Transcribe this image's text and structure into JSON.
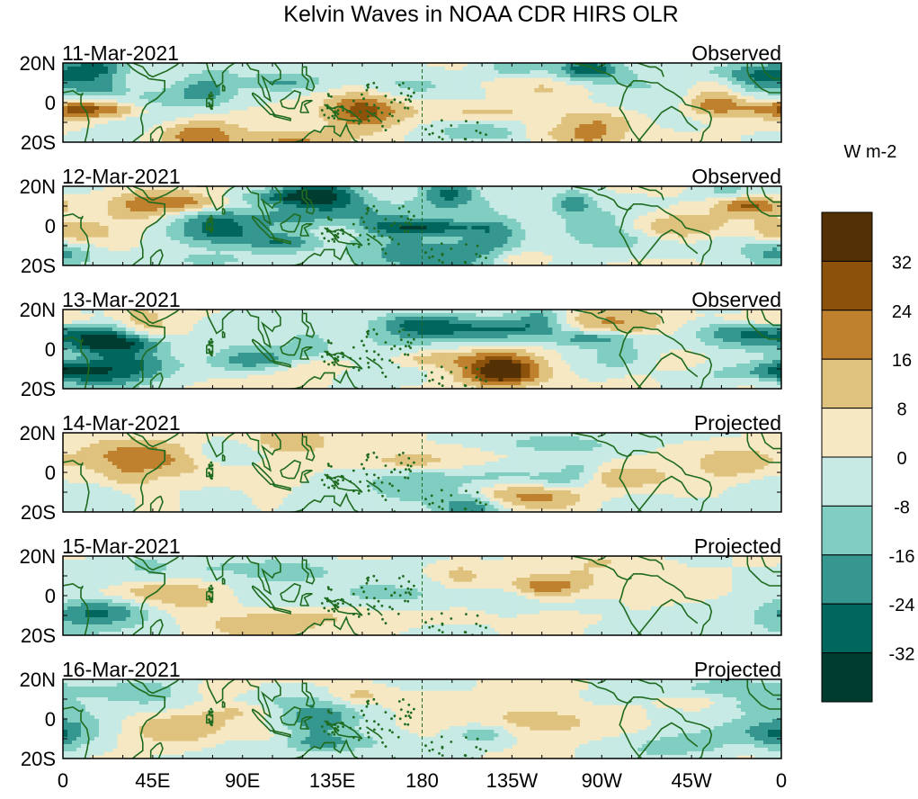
{
  "chart_data": {
    "type": "heatmap",
    "title": "Kelvin Waves in NOAA CDR HIRS OLR",
    "units_label": "W m-2",
    "x_tick_labels": [
      "0",
      "45E",
      "90E",
      "135E",
      "180",
      "135W",
      "90W",
      "45W",
      "0"
    ],
    "x_tick_lons": [
      0,
      45,
      90,
      135,
      180,
      225,
      270,
      315,
      360
    ],
    "y_tick_labels": [
      "20N",
      "0",
      "20S"
    ],
    "y_tick_lats": [
      20,
      0,
      -20
    ],
    "xlim": [
      0,
      360
    ],
    "ylim": [
      -20,
      20
    ],
    "panels": [
      {
        "date": "11-Mar-2021",
        "status": "Observed"
      },
      {
        "date": "12-Mar-2021",
        "status": "Observed"
      },
      {
        "date": "13-Mar-2021",
        "status": "Observed"
      },
      {
        "date": "14-Mar-2021",
        "status": "Projected"
      },
      {
        "date": "15-Mar-2021",
        "status": "Projected"
      },
      {
        "date": "16-Mar-2021",
        "status": "Projected"
      }
    ],
    "colorbar": {
      "levels": [
        32,
        24,
        16,
        8,
        0,
        -8,
        -16,
        -24,
        -32
      ],
      "labels": [
        "32",
        "24",
        "16",
        "8",
        "0",
        "-8",
        "-16",
        "-24",
        "-32"
      ],
      "colors": [
        "#543005",
        "#8c510a",
        "#bf812d",
        "#dfc27d",
        "#f6e8c3",
        "#c7eae5",
        "#80cdc1",
        "#35978f",
        "#01665e",
        "#003c30"
      ]
    },
    "map_colors": {
      "coast": "#1f6b1f",
      "dateline": "#1f6b1f",
      "frame": "#000000"
    }
  }
}
